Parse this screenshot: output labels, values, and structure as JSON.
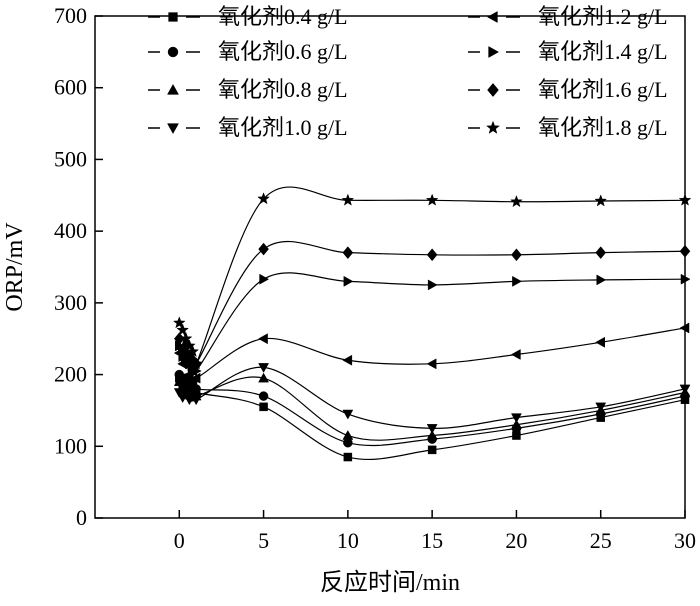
{
  "chart_data": {
    "type": "line",
    "xlabel": "反应时间/min",
    "ylabel": "ORP/mV",
    "xlim": [
      -5,
      30
    ],
    "ylim": [
      0,
      700
    ],
    "x_ticks": [
      0,
      5,
      10,
      15,
      20,
      25,
      30
    ],
    "y_ticks": [
      0,
      100,
      200,
      300,
      400,
      500,
      600,
      700
    ],
    "grid": false,
    "legend_position": "top",
    "marker_color": "#000000",
    "series": [
      {
        "name": "氧化剂0.4 g/L",
        "marker": "square",
        "x": [
          0,
          0.2,
          0.4,
          0.6,
          0.8,
          1,
          5,
          10,
          15,
          20,
          25,
          30
        ],
        "y": [
          195,
          185,
          190,
          180,
          185,
          175,
          155,
          85,
          95,
          115,
          140,
          165
        ]
      },
      {
        "name": "氧化剂0.6 g/L",
        "marker": "circle",
        "x": [
          0,
          0.2,
          0.4,
          0.6,
          0.8,
          1,
          5,
          10,
          15,
          20,
          25,
          30
        ],
        "y": [
          200,
          190,
          195,
          185,
          190,
          180,
          170,
          105,
          110,
          125,
          145,
          170
        ]
      },
      {
        "name": "氧化剂0.8 g/L",
        "marker": "triangle-up",
        "x": [
          0,
          0.2,
          0.4,
          0.6,
          0.8,
          1,
          5,
          10,
          15,
          20,
          25,
          30
        ],
        "y": [
          190,
          180,
          185,
          175,
          180,
          170,
          195,
          115,
          115,
          130,
          150,
          175
        ]
      },
      {
        "name": "氧化剂1.0 g/L",
        "marker": "triangle-down",
        "x": [
          0,
          0.2,
          0.4,
          0.6,
          0.8,
          1,
          5,
          10,
          15,
          20,
          25,
          30
        ],
        "y": [
          175,
          168,
          172,
          165,
          170,
          165,
          210,
          145,
          125,
          140,
          155,
          180
        ]
      },
      {
        "name": "氧化剂1.2 g/L",
        "marker": "triangle-left",
        "x": [
          0,
          0.2,
          0.4,
          0.6,
          0.8,
          1,
          5,
          10,
          15,
          20,
          25,
          30
        ],
        "y": [
          230,
          215,
          220,
          200,
          205,
          195,
          250,
          220,
          215,
          228,
          245,
          265
        ]
      },
      {
        "name": "氧化剂1.4 g/L",
        "marker": "triangle-right",
        "x": [
          0,
          0.2,
          0.4,
          0.6,
          0.8,
          1,
          5,
          10,
          15,
          20,
          25,
          30
        ],
        "y": [
          240,
          225,
          230,
          215,
          210,
          205,
          333,
          330,
          325,
          330,
          332,
          333
        ]
      },
      {
        "name": "氧化剂1.6 g/L",
        "marker": "diamond",
        "x": [
          0,
          0.2,
          0.4,
          0.6,
          0.8,
          1,
          5,
          10,
          15,
          20,
          25,
          30
        ],
        "y": [
          250,
          235,
          240,
          225,
          220,
          215,
          375,
          370,
          367,
          367,
          370,
          372
        ]
      },
      {
        "name": "氧化剂1.8 g/L",
        "marker": "star",
        "x": [
          0,
          0.2,
          0.4,
          0.6,
          0.8,
          1,
          5,
          10,
          15,
          20,
          25,
          30
        ],
        "y": [
          272,
          262,
          250,
          240,
          232,
          215,
          445,
          443,
          443,
          441,
          442,
          443
        ]
      }
    ]
  }
}
